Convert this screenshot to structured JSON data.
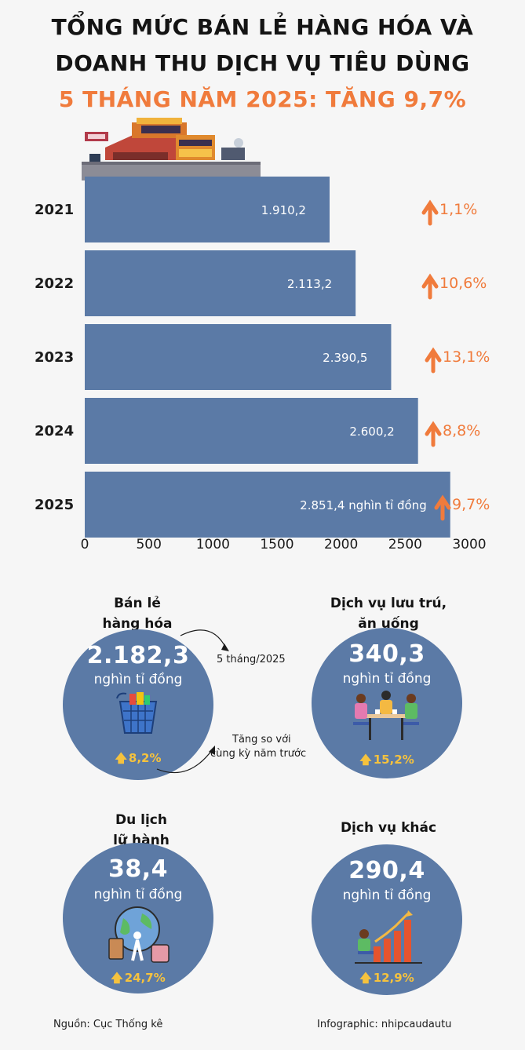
{
  "header": {
    "line1": "TỔNG MỨC BÁN LẺ HÀNG HÓA VÀ",
    "line2": "DOANH THU DỊCH VỤ TIÊU DÙNG",
    "line3": "5 THÁNG NĂM 2025: TĂNG 9,7%"
  },
  "chart_data": {
    "type": "bar",
    "orientation": "horizontal",
    "categories": [
      "2021",
      "2022",
      "2023",
      "2024",
      "2025"
    ],
    "values": [
      1910.2,
      2113.2,
      2390.5,
      2600.2,
      2851.4
    ],
    "value_labels": [
      "1.910,2",
      "2.113,2",
      "2.390,5",
      "2.600,2",
      "2.851,4 nghìn tỉ đồng"
    ],
    "growth_labels": [
      "1,1%",
      "10,6%",
      "13,1%",
      "8,8%",
      "9,7%"
    ],
    "xticks": [
      "0",
      "500",
      "1000",
      "1500",
      "2000",
      "2500",
      "3000"
    ],
    "xlim": [
      0,
      3000
    ],
    "grid": false,
    "colors": {
      "bar": "#5b7aa6",
      "growth": "#f07b3c"
    }
  },
  "categories": [
    {
      "label1": "Bán lẻ",
      "label2": "hàng hóa",
      "value": "2.182,3",
      "unit": "nghìn tỉ đồng",
      "growth": "8,2%",
      "icon": "shopping-basket-icon"
    },
    {
      "label1": "Dịch vụ lưu trú,",
      "label2": "ăn uống",
      "value": "340,3",
      "unit": "nghìn tỉ đồng",
      "growth": "15,2%",
      "icon": "dining-people-icon"
    },
    {
      "label1": "Du lịch",
      "label2": "lữ hành",
      "value": "38,4",
      "unit": "nghìn tỉ đồng",
      "growth": "24,7%",
      "icon": "globe-luggage-icon"
    },
    {
      "label1": "",
      "label2": "Dịch vụ khác",
      "value": "290,4",
      "unit": "nghìn tỉ đồng",
      "growth": "12,9%",
      "icon": "growth-chart-icon"
    }
  ],
  "notes": {
    "period": "5 tháng/2025",
    "compare1": "Tăng so với",
    "compare2": "cùng kỳ năm trước"
  },
  "footer": {
    "source": "Nguồn: Cục Thống kê",
    "credit": "Infographic: nhipcaudautu"
  },
  "colors": {
    "accent": "#f07b3c",
    "circle": "#5b7aa6",
    "growth_small": "#f5c23e"
  }
}
